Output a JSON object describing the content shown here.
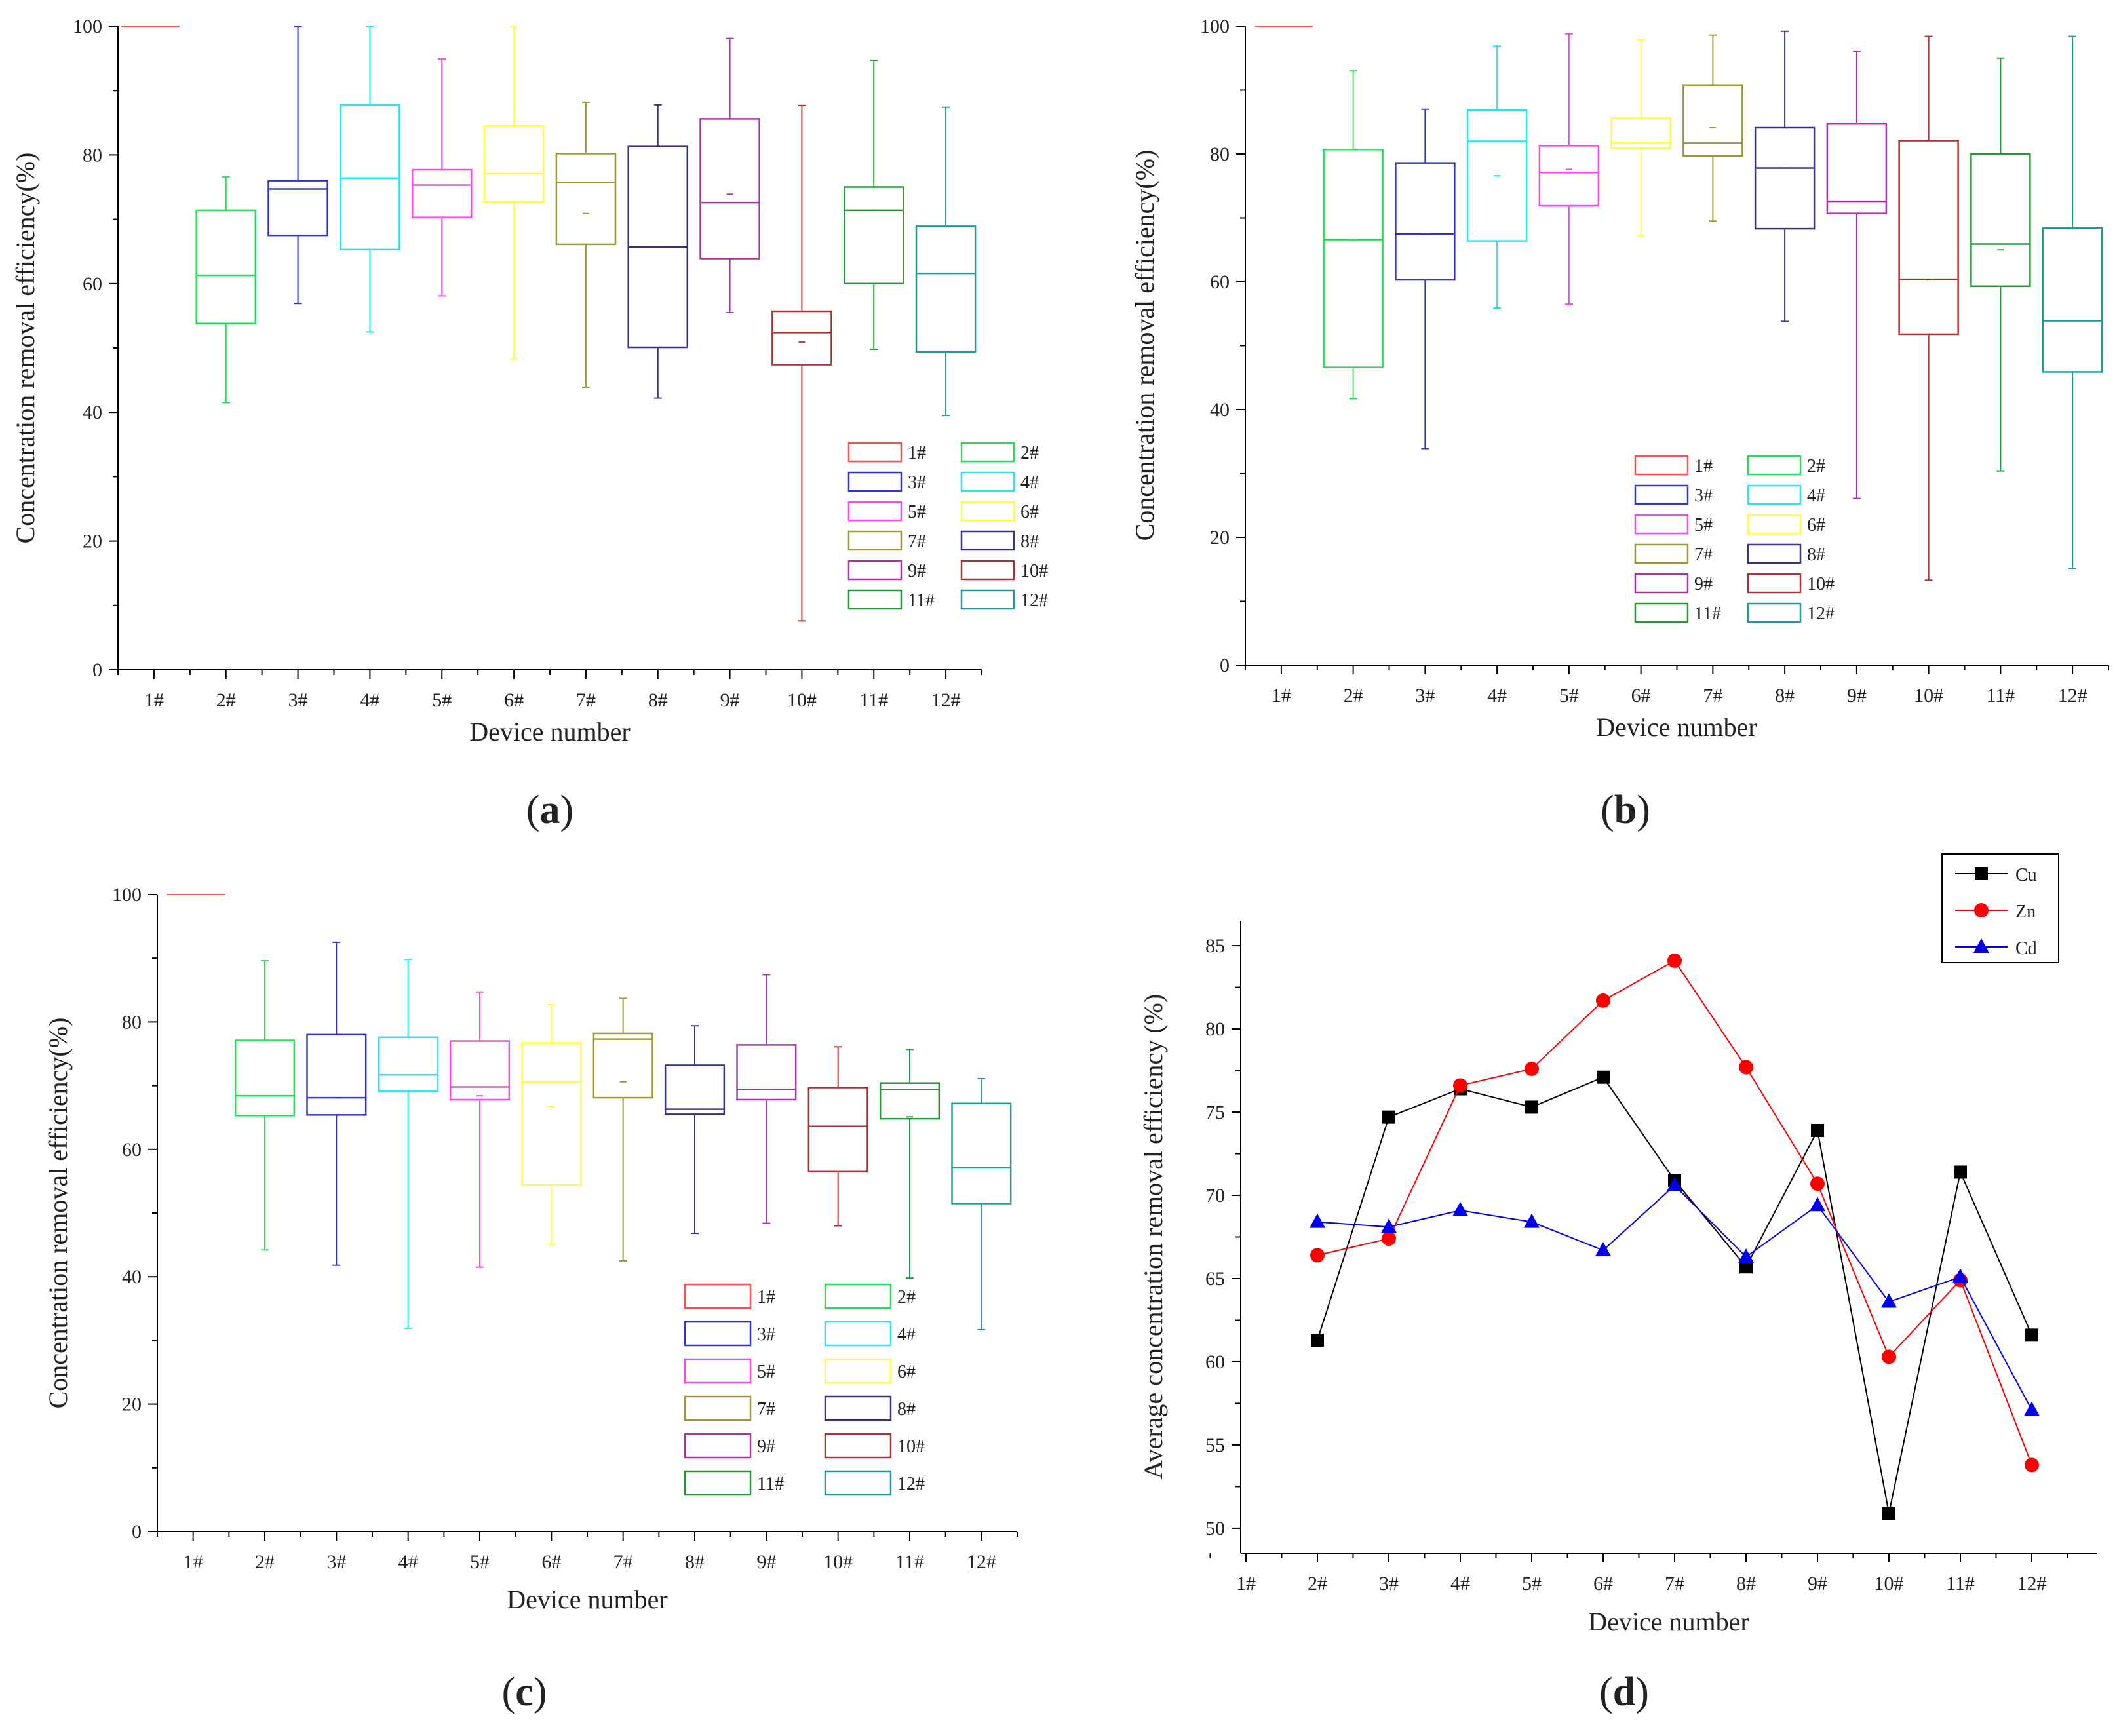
{
  "figure": {
    "panels": [
      {
        "key": "a",
        "label_open": "(",
        "label_letter": "a",
        "label_close": ")"
      },
      {
        "key": "b",
        "label_open": "(",
        "label_letter": "b",
        "label_close": ")"
      },
      {
        "key": "c",
        "label_open": "(",
        "label_letter": "c",
        "label_close": ")"
      },
      {
        "key": "d",
        "label_open": "(",
        "label_letter": "d",
        "label_close": ")"
      }
    ]
  },
  "chart_data": [
    {
      "id": "a",
      "type": "box",
      "xlabel": "Device number",
      "ylabel": "Concentration removal efficiency(%)",
      "ylim": [
        0,
        100
      ],
      "yticks": [
        0,
        20,
        40,
        60,
        80,
        100
      ],
      "categories": [
        "1#",
        "2#",
        "3#",
        "4#",
        "5#",
        "6#",
        "7#",
        "8#",
        "9#",
        "10#",
        "11#",
        "12#"
      ],
      "colors": [
        "#ff4d4d",
        "#22dd55",
        "#3333cc",
        "#22e6f0",
        "#ff44ee",
        "#ffff33",
        "#999933",
        "#333388",
        "#aa33aa",
        "#aa3333",
        "#229933",
        "#229999"
      ],
      "legend": [
        "1#",
        "2#",
        "3#",
        "4#",
        "5#",
        "6#",
        "7#",
        "8#",
        "9#",
        "10#",
        "11#",
        "12#"
      ],
      "legend_position": "bottom-right",
      "boxes": [
        {
          "min": 100,
          "q1": 100,
          "median": 100,
          "q3": 100,
          "max": 100,
          "mean": 100
        },
        {
          "min": 41.5,
          "q1": 53.8,
          "median": 61.3,
          "q3": 71.4,
          "max": 76.6,
          "mean": 61.3
        },
        {
          "min": 56.9,
          "q1": 67.5,
          "median": 74.7,
          "q3": 76.0,
          "max": 100,
          "mean": 74.7
        },
        {
          "min": 52.5,
          "q1": 65.3,
          "median": 76.4,
          "q3": 87.8,
          "max": 100,
          "mean": 76.4
        },
        {
          "min": 58.1,
          "q1": 70.3,
          "median": 75.3,
          "q3": 77.7,
          "max": 94.9,
          "mean": 75.3
        },
        {
          "min": 48.3,
          "q1": 72.7,
          "median": 77.1,
          "q3": 84.5,
          "max": 100,
          "mean": 77.1
        },
        {
          "min": 43.9,
          "q1": 66.1,
          "median": 75.7,
          "q3": 80.2,
          "max": 88.2,
          "mean": 70.9
        },
        {
          "min": 42.2,
          "q1": 50.1,
          "median": 65.7,
          "q3": 81.3,
          "max": 87.8,
          "mean": 65.7
        },
        {
          "min": 55.5,
          "q1": 63.9,
          "median": 72.6,
          "q3": 85.6,
          "max": 98.1,
          "mean": 73.9
        },
        {
          "min": 7.6,
          "q1": 47.4,
          "median": 52.4,
          "q3": 55.7,
          "max": 87.7,
          "mean": 50.9
        },
        {
          "min": 49.8,
          "q1": 60.0,
          "median": 71.4,
          "q3": 75.0,
          "max": 94.7,
          "mean": 71.4
        },
        {
          "min": 39.5,
          "q1": 49.4,
          "median": 61.6,
          "q3": 68.9,
          "max": 87.4,
          "mean": 61.6
        }
      ]
    },
    {
      "id": "b",
      "type": "box",
      "xlabel": "Device number",
      "ylabel": "Concentration removal efficiency(%)",
      "ylim": [
        0,
        100
      ],
      "yticks": [
        0,
        20,
        40,
        60,
        80,
        100
      ],
      "categories": [
        "1#",
        "2#",
        "3#",
        "4#",
        "5#",
        "6#",
        "7#",
        "8#",
        "9#",
        "10#",
        "11#",
        "12#"
      ],
      "colors": [
        "#ff4d4d",
        "#22dd55",
        "#3333cc",
        "#22e6f0",
        "#ff44ee",
        "#ffff33",
        "#999933",
        "#333388",
        "#aa33aa",
        "#aa3333",
        "#229933",
        "#229999"
      ],
      "legend": [
        "1#",
        "2#",
        "3#",
        "4#",
        "5#",
        "6#",
        "7#",
        "8#",
        "9#",
        "10#",
        "11#",
        "12#"
      ],
      "legend_position": "bottom-center",
      "boxes": [
        {
          "min": 100,
          "q1": 100,
          "median": 100,
          "q3": 100,
          "max": 100,
          "mean": 100
        },
        {
          "min": 41.7,
          "q1": 46.6,
          "median": 66.6,
          "q3": 80.7,
          "max": 93.0,
          "mean": 66.6
        },
        {
          "min": 33.9,
          "q1": 60.3,
          "median": 67.5,
          "q3": 78.6,
          "max": 87.0,
          "mean": 67.5
        },
        {
          "min": 55.9,
          "q1": 66.4,
          "median": 82.0,
          "q3": 86.9,
          "max": 96.9,
          "mean": 76.6
        },
        {
          "min": 56.5,
          "q1": 71.9,
          "median": 77.1,
          "q3": 81.3,
          "max": 98.8,
          "mean": 77.6
        },
        {
          "min": 67.2,
          "q1": 80.9,
          "median": 81.8,
          "q3": 85.6,
          "max": 97.9,
          "mean": 81.7
        },
        {
          "min": 69.5,
          "q1": 79.7,
          "median": 81.7,
          "q3": 90.8,
          "max": 98.6,
          "mean": 84.1
        },
        {
          "min": 53.8,
          "q1": 68.3,
          "median": 77.8,
          "q3": 84.1,
          "max": 99.2,
          "mean": 77.8
        },
        {
          "min": 26.1,
          "q1": 70.7,
          "median": 72.6,
          "q3": 84.8,
          "max": 96.0,
          "mean": 70.7
        },
        {
          "min": 13.3,
          "q1": 51.8,
          "median": 60.4,
          "q3": 82.1,
          "max": 98.4,
          "mean": 60.3
        },
        {
          "min": 30.4,
          "q1": 59.3,
          "median": 65.9,
          "q3": 80.0,
          "max": 95.0,
          "mean": 65.0
        },
        {
          "min": 15.1,
          "q1": 45.9,
          "median": 53.9,
          "q3": 68.4,
          "max": 98.4,
          "mean": 53.9
        }
      ]
    },
    {
      "id": "c",
      "type": "box",
      "xlabel": "Device number",
      "ylabel": "Concentration removal efficiency(%)",
      "ylim": [
        0,
        100
      ],
      "yticks": [
        0,
        20,
        40,
        60,
        80,
        100
      ],
      "categories": [
        "1#",
        "2#",
        "3#",
        "4#",
        "5#",
        "6#",
        "7#",
        "8#",
        "9#",
        "10#",
        "11#",
        "12#"
      ],
      "colors": [
        "#ff4d4d",
        "#22dd55",
        "#3333cc",
        "#22e6f0",
        "#ff44ee",
        "#ffff33",
        "#999933",
        "#333388",
        "#aa33aa",
        "#aa3333",
        "#229933",
        "#229999"
      ],
      "legend": [
        "1#",
        "2#",
        "3#",
        "4#",
        "5#",
        "6#",
        "7#",
        "8#",
        "9#",
        "10#",
        "11#",
        "12#"
      ],
      "legend_position": "bottom-right",
      "boxes": [
        {
          "min": 100,
          "q1": 100,
          "median": 100,
          "q3": 100,
          "max": 100,
          "mean": 100
        },
        {
          "min": 44.2,
          "q1": 65.3,
          "median": 68.4,
          "q3": 77.1,
          "max": 89.6,
          "mean": 68.4
        },
        {
          "min": 41.8,
          "q1": 65.4,
          "median": 68.1,
          "q3": 78.0,
          "max": 92.5,
          "mean": 68.1
        },
        {
          "min": 31.9,
          "q1": 69.1,
          "median": 71.7,
          "q3": 77.6,
          "max": 89.8,
          "mean": 69.1
        },
        {
          "min": 41.5,
          "q1": 67.8,
          "median": 69.8,
          "q3": 77.0,
          "max": 84.7,
          "mean": 68.4
        },
        {
          "min": 45.1,
          "q1": 54.4,
          "median": 70.6,
          "q3": 76.7,
          "max": 82.7,
          "mean": 66.7
        },
        {
          "min": 42.5,
          "q1": 68.1,
          "median": 77.3,
          "q3": 78.2,
          "max": 83.7,
          "mean": 70.6
        },
        {
          "min": 46.8,
          "q1": 65.5,
          "median": 66.3,
          "q3": 73.2,
          "max": 79.4,
          "mean": 66.3
        },
        {
          "min": 48.4,
          "q1": 67.8,
          "median": 69.4,
          "q3": 76.4,
          "max": 87.4,
          "mean": 69.4
        },
        {
          "min": 48.0,
          "q1": 56.5,
          "median": 63.6,
          "q3": 69.7,
          "max": 76.1,
          "mean": 63.6
        },
        {
          "min": 39.8,
          "q1": 64.8,
          "median": 69.4,
          "q3": 70.4,
          "max": 75.7,
          "mean": 65.1
        },
        {
          "min": 31.7,
          "q1": 51.5,
          "median": 57.1,
          "q3": 67.2,
          "max": 71.1,
          "mean": 57.1
        }
      ]
    },
    {
      "id": "d",
      "type": "line",
      "xlabel": "Device number",
      "ylabel": "Average concentration removal efficiency (%)",
      "ylim": [
        48.5,
        86.5
      ],
      "yticks": [
        50,
        55,
        60,
        65,
        70,
        75,
        80,
        85
      ],
      "categories": [
        "1#",
        "2#",
        "3#",
        "4#",
        "5#",
        "6#",
        "7#",
        "8#",
        "9#",
        "10#",
        "11#",
        "12#"
      ],
      "legend_position": "top-right",
      "series": [
        {
          "name": "Cu",
          "color": "#000000",
          "marker": "square",
          "values": [
            null,
            61.3,
            74.7,
            76.4,
            75.3,
            77.1,
            70.9,
            65.7,
            73.9,
            50.9,
            71.4,
            61.6
          ]
        },
        {
          "name": "Zn",
          "color": "#ff0000",
          "marker": "circle",
          "values": [
            null,
            66.4,
            67.4,
            76.6,
            77.6,
            81.7,
            84.1,
            77.7,
            70.7,
            60.3,
            64.9,
            53.8
          ]
        },
        {
          "name": "Cd",
          "color": "#0000ee",
          "marker": "triangle",
          "values": [
            null,
            68.4,
            68.1,
            69.1,
            68.4,
            66.7,
            70.6,
            66.3,
            69.4,
            63.6,
            65.1,
            57.1
          ]
        }
      ]
    }
  ]
}
